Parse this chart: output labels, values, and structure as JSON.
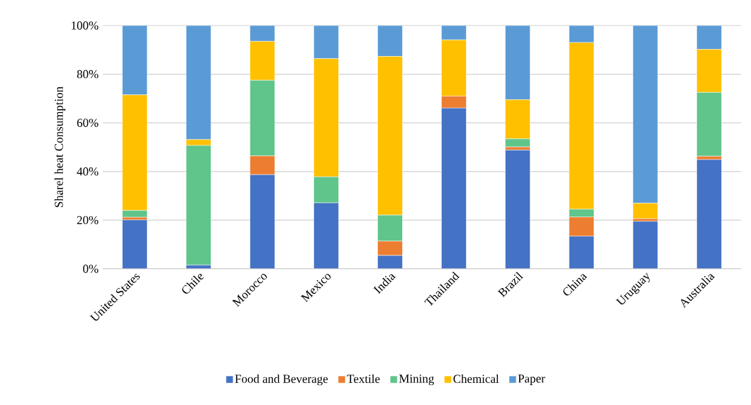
{
  "chart_data": {
    "type": "bar",
    "stacked": true,
    "ylabel": "Sharel heat Consumption",
    "categories": [
      "United States",
      "Chile",
      "Morocco",
      "Mexico",
      "India",
      "Thailand",
      "Brazil",
      "China",
      "Uruguay",
      "Australia"
    ],
    "series": [
      {
        "name": "Food and Beverage",
        "color": "#4472c4",
        "values": [
          20.1,
          1.5,
          38.7,
          27.1,
          5.5,
          66.1,
          48.8,
          13.4,
          19.5,
          44.9
        ]
      },
      {
        "name": "Textile",
        "color": "#ed7d31",
        "values": [
          1.1,
          0,
          7.7,
          0,
          5.9,
          4.9,
          1.3,
          7.9,
          1.1,
          1.4
        ]
      },
      {
        "name": "Mining",
        "color": "#5fc58a",
        "values": [
          2.8,
          49.2,
          31.1,
          10.7,
          10.7,
          0,
          3.3,
          3.2,
          0,
          26.2
        ]
      },
      {
        "name": "Chemical",
        "color": "#ffc000",
        "values": [
          47.5,
          2.4,
          16.0,
          48.6,
          65.2,
          23.1,
          16.1,
          68.5,
          6.4,
          17.7
        ]
      },
      {
        "name": "Paper",
        "color": "#5b9bd5",
        "values": [
          28.5,
          46.9,
          6.5,
          13.6,
          12.7,
          5.9,
          30.5,
          7.0,
          73.0,
          9.8
        ]
      }
    ],
    "ylim": [
      0,
      100
    ],
    "yticks": [
      {
        "value": 0,
        "label": "0%"
      },
      {
        "value": 20,
        "label": "20%"
      },
      {
        "value": 40,
        "label": "40%"
      },
      {
        "value": 60,
        "label": "60%"
      },
      {
        "value": 80,
        "label": "80%"
      },
      {
        "value": 100,
        "label": "100%"
      }
    ],
    "grid": "y",
    "legend": "bottom"
  }
}
